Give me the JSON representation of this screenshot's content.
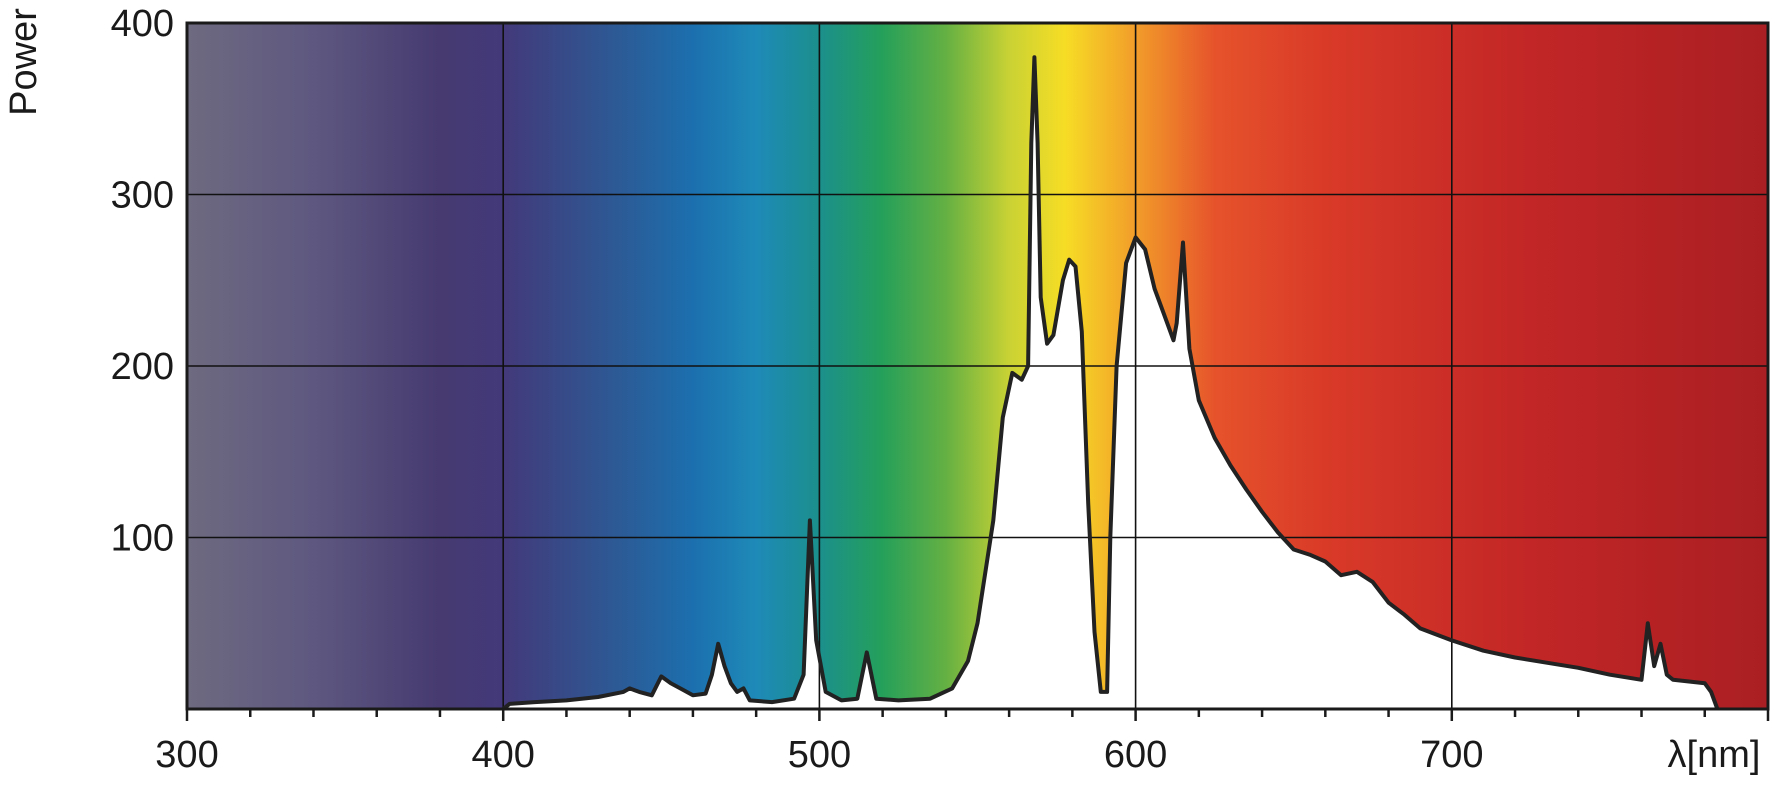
{
  "chart_data": {
    "type": "area",
    "xlabel": "λ[nm]",
    "ylabel": "Power",
    "xlim": [
      300,
      800
    ],
    "ylim": [
      0,
      400
    ],
    "x_ticks": [
      300,
      400,
      500,
      600,
      700
    ],
    "y_ticks": [
      100,
      200,
      300,
      400
    ],
    "grid": true,
    "background": "visible-spectrum gradient",
    "series": [
      {
        "fill": "#ffffff",
        "stroke": "#222222",
        "points": [
          [
            400,
            0
          ],
          [
            402,
            3
          ],
          [
            410,
            4
          ],
          [
            420,
            5
          ],
          [
            430,
            7
          ],
          [
            438,
            10
          ],
          [
            440,
            12
          ],
          [
            443,
            10
          ],
          [
            447,
            8
          ],
          [
            450,
            19
          ],
          [
            453,
            15
          ],
          [
            456,
            12
          ],
          [
            460,
            8
          ],
          [
            464,
            9
          ],
          [
            466,
            20
          ],
          [
            468,
            38
          ],
          [
            470,
            25
          ],
          [
            472,
            15
          ],
          [
            474,
            10
          ],
          [
            476,
            12
          ],
          [
            478,
            5
          ],
          [
            485,
            4
          ],
          [
            492,
            6
          ],
          [
            495,
            20
          ],
          [
            497,
            110
          ],
          [
            499,
            40
          ],
          [
            502,
            10
          ],
          [
            507,
            5
          ],
          [
            512,
            6
          ],
          [
            515,
            33
          ],
          [
            518,
            6
          ],
          [
            525,
            5
          ],
          [
            535,
            6
          ],
          [
            542,
            12
          ],
          [
            547,
            28
          ],
          [
            550,
            50
          ],
          [
            555,
            110
          ],
          [
            558,
            170
          ],
          [
            561,
            196
          ],
          [
            564,
            192
          ],
          [
            566,
            200
          ],
          [
            567,
            330
          ],
          [
            568,
            380
          ],
          [
            569,
            330
          ],
          [
            570,
            240
          ],
          [
            572,
            213
          ],
          [
            574,
            218
          ],
          [
            577,
            250
          ],
          [
            579,
            262
          ],
          [
            581,
            258
          ],
          [
            583,
            220
          ],
          [
            585,
            120
          ],
          [
            587,
            45
          ],
          [
            589,
            10
          ],
          [
            591,
            10
          ],
          [
            592,
            100
          ],
          [
            594,
            200
          ],
          [
            597,
            260
          ],
          [
            600,
            275
          ],
          [
            603,
            268
          ],
          [
            606,
            245
          ],
          [
            609,
            230
          ],
          [
            612,
            215
          ],
          [
            613,
            225
          ],
          [
            615,
            272
          ],
          [
            617,
            210
          ],
          [
            620,
            180
          ],
          [
            625,
            158
          ],
          [
            630,
            142
          ],
          [
            635,
            128
          ],
          [
            640,
            115
          ],
          [
            645,
            103
          ],
          [
            650,
            93
          ],
          [
            655,
            90
          ],
          [
            660,
            86
          ],
          [
            665,
            78
          ],
          [
            670,
            80
          ],
          [
            675,
            74
          ],
          [
            680,
            62
          ],
          [
            685,
            55
          ],
          [
            690,
            47
          ],
          [
            700,
            40
          ],
          [
            710,
            34
          ],
          [
            720,
            30
          ],
          [
            730,
            27
          ],
          [
            740,
            24
          ],
          [
            750,
            20
          ],
          [
            760,
            17
          ],
          [
            762,
            50
          ],
          [
            764,
            25
          ],
          [
            766,
            38
          ],
          [
            768,
            20
          ],
          [
            770,
            17
          ],
          [
            780,
            15
          ],
          [
            782,
            10
          ],
          [
            784,
            0
          ]
        ]
      }
    ]
  }
}
